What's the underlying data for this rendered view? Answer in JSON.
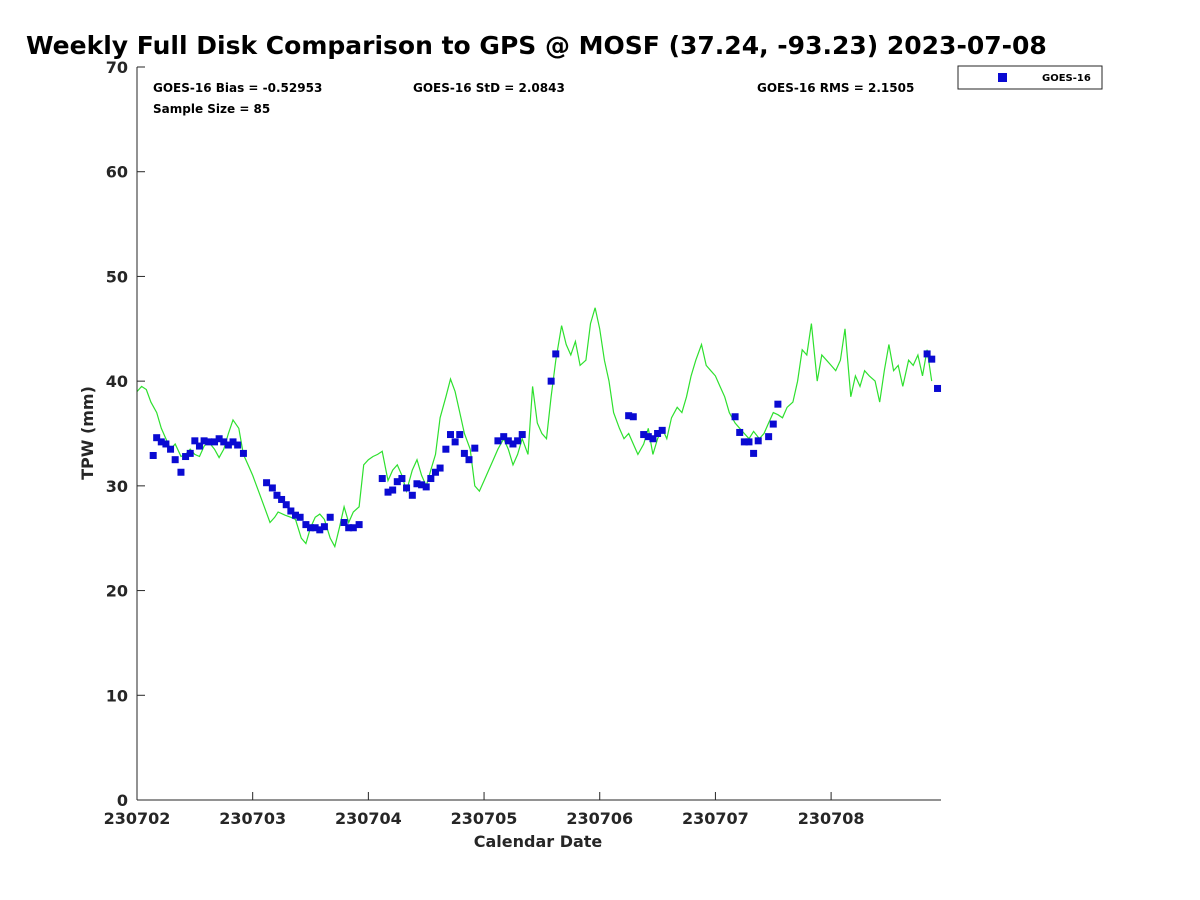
{
  "chart_data": {
    "type": "scatter",
    "title": "Weekly Full Disk Comparison to GPS @ MOSF (37.24, -93.23) 2023-07-08",
    "xlabel": "Calendar Date",
    "ylabel": "TPW (mm)",
    "xlim": [
      0,
      6.95
    ],
    "ylim": [
      0,
      70
    ],
    "yticks": [
      0,
      10,
      20,
      30,
      40,
      50,
      60,
      70
    ],
    "xticks": [
      {
        "value": 0,
        "label": "230702"
      },
      {
        "value": 1,
        "label": "230703"
      },
      {
        "value": 2,
        "label": "230704"
      },
      {
        "value": 3,
        "label": "230705"
      },
      {
        "value": 4,
        "label": "230706"
      },
      {
        "value": 5,
        "label": "230707"
      },
      {
        "value": 6,
        "label": "230708"
      }
    ],
    "grid": false,
    "legend": {
      "position": "top-right",
      "entries": [
        "GOES-16"
      ]
    },
    "stats": {
      "bias": "GOES-16 Bias = -0.52953",
      "std": "GOES-16 StD = 2.0843",
      "rms": "GOES-16 RMS = 2.1505",
      "sample": "Sample Size = 85"
    },
    "colors": {
      "goes": "#0a0ad2",
      "gps": "#2ee02e",
      "axis": "#262626"
    },
    "series": [
      {
        "name": "GPS",
        "type": "line",
        "points": [
          [
            0.0,
            39.0
          ],
          [
            0.04,
            39.5
          ],
          [
            0.08,
            39.2
          ],
          [
            0.12,
            38.0
          ],
          [
            0.17,
            37.0
          ],
          [
            0.21,
            35.5
          ],
          [
            0.25,
            34.5
          ],
          [
            0.29,
            33.5
          ],
          [
            0.33,
            34.0
          ],
          [
            0.38,
            32.8
          ],
          [
            0.42,
            33.0
          ],
          [
            0.46,
            33.5
          ],
          [
            0.5,
            33.0
          ],
          [
            0.54,
            32.8
          ],
          [
            0.58,
            33.8
          ],
          [
            0.62,
            34.2
          ],
          [
            0.67,
            33.5
          ],
          [
            0.71,
            32.7
          ],
          [
            0.75,
            33.5
          ],
          [
            0.79,
            35.0
          ],
          [
            0.83,
            36.3
          ],
          [
            0.88,
            35.5
          ],
          [
            0.92,
            33.0
          ],
          [
            0.96,
            32.0
          ],
          [
            1.0,
            31.0
          ],
          [
            1.05,
            29.5
          ],
          [
            1.1,
            28.0
          ],
          [
            1.15,
            26.5
          ],
          [
            1.19,
            27.0
          ],
          [
            1.22,
            27.5
          ],
          [
            1.28,
            27.2
          ],
          [
            1.33,
            27.0
          ],
          [
            1.37,
            26.8
          ],
          [
            1.42,
            25.0
          ],
          [
            1.46,
            24.5
          ],
          [
            1.5,
            26.0
          ],
          [
            1.54,
            27.0
          ],
          [
            1.58,
            27.3
          ],
          [
            1.62,
            26.8
          ],
          [
            1.67,
            25.0
          ],
          [
            1.71,
            24.2
          ],
          [
            1.75,
            26.0
          ],
          [
            1.79,
            28.0
          ],
          [
            1.83,
            26.5
          ],
          [
            1.87,
            27.5
          ],
          [
            1.92,
            28.0
          ],
          [
            1.96,
            32.0
          ],
          [
            2.0,
            32.5
          ],
          [
            2.04,
            32.8
          ],
          [
            2.08,
            33.0
          ],
          [
            2.12,
            33.3
          ],
          [
            2.17,
            30.5
          ],
          [
            2.21,
            31.5
          ],
          [
            2.25,
            32.0
          ],
          [
            2.29,
            31.0
          ],
          [
            2.33,
            29.5
          ],
          [
            2.38,
            31.5
          ],
          [
            2.42,
            32.5
          ],
          [
            2.46,
            31.0
          ],
          [
            2.5,
            30.0
          ],
          [
            2.54,
            31.5
          ],
          [
            2.58,
            33.0
          ],
          [
            2.62,
            36.5
          ],
          [
            2.67,
            38.5
          ],
          [
            2.71,
            40.2
          ],
          [
            2.75,
            39.0
          ],
          [
            2.79,
            37.0
          ],
          [
            2.83,
            35.0
          ],
          [
            2.88,
            33.5
          ],
          [
            2.92,
            30.0
          ],
          [
            2.96,
            29.5
          ],
          [
            3.0,
            30.5
          ],
          [
            3.04,
            31.5
          ],
          [
            3.08,
            32.5
          ],
          [
            3.12,
            33.5
          ],
          [
            3.17,
            34.5
          ],
          [
            3.21,
            33.5
          ],
          [
            3.25,
            32.0
          ],
          [
            3.29,
            33.0
          ],
          [
            3.33,
            34.5
          ],
          [
            3.38,
            33.0
          ],
          [
            3.42,
            39.5
          ],
          [
            3.46,
            36.0
          ],
          [
            3.5,
            35.0
          ],
          [
            3.54,
            34.5
          ],
          [
            3.58,
            38.5
          ],
          [
            3.62,
            42.0
          ],
          [
            3.67,
            45.3
          ],
          [
            3.71,
            43.5
          ],
          [
            3.75,
            42.5
          ],
          [
            3.79,
            43.8
          ],
          [
            3.83,
            41.5
          ],
          [
            3.88,
            42.0
          ],
          [
            3.92,
            45.5
          ],
          [
            3.96,
            47.0
          ],
          [
            4.0,
            45.0
          ],
          [
            4.04,
            42.0
          ],
          [
            4.08,
            40.0
          ],
          [
            4.12,
            37.0
          ],
          [
            4.17,
            35.5
          ],
          [
            4.21,
            34.5
          ],
          [
            4.25,
            35.0
          ],
          [
            4.29,
            34.0
          ],
          [
            4.33,
            33.0
          ],
          [
            4.38,
            34.0
          ],
          [
            4.42,
            35.5
          ],
          [
            4.46,
            33.0
          ],
          [
            4.5,
            34.5
          ],
          [
            4.54,
            35.5
          ],
          [
            4.58,
            34.5
          ],
          [
            4.62,
            36.5
          ],
          [
            4.67,
            37.5
          ],
          [
            4.71,
            37.0
          ],
          [
            4.75,
            38.5
          ],
          [
            4.79,
            40.5
          ],
          [
            4.83,
            42.0
          ],
          [
            4.88,
            43.5
          ],
          [
            4.92,
            41.5
          ],
          [
            4.96,
            41.0
          ],
          [
            5.0,
            40.5
          ],
          [
            5.04,
            39.5
          ],
          [
            5.08,
            38.5
          ],
          [
            5.12,
            37.0
          ],
          [
            5.17,
            36.0
          ],
          [
            5.21,
            35.5
          ],
          [
            5.25,
            35.0
          ],
          [
            5.29,
            34.5
          ],
          [
            5.33,
            35.2
          ],
          [
            5.38,
            34.5
          ],
          [
            5.42,
            35.0
          ],
          [
            5.46,
            36.0
          ],
          [
            5.5,
            37.0
          ],
          [
            5.54,
            36.8
          ],
          [
            5.58,
            36.5
          ],
          [
            5.62,
            37.5
          ],
          [
            5.67,
            38.0
          ],
          [
            5.71,
            40.0
          ],
          [
            5.75,
            43.0
          ],
          [
            5.79,
            42.5
          ],
          [
            5.83,
            45.5
          ],
          [
            5.88,
            40.0
          ],
          [
            5.92,
            42.5
          ],
          [
            5.96,
            42.0
          ],
          [
            6.0,
            41.5
          ],
          [
            6.04,
            41.0
          ],
          [
            6.08,
            42.0
          ],
          [
            6.12,
            45.0
          ],
          [
            6.17,
            38.5
          ],
          [
            6.21,
            40.5
          ],
          [
            6.25,
            39.5
          ],
          [
            6.29,
            41.0
          ],
          [
            6.33,
            40.5
          ],
          [
            6.38,
            40.0
          ],
          [
            6.42,
            38.0
          ],
          [
            6.46,
            41.0
          ],
          [
            6.5,
            43.5
          ],
          [
            6.54,
            41.0
          ],
          [
            6.58,
            41.5
          ],
          [
            6.62,
            39.5
          ],
          [
            6.67,
            42.0
          ],
          [
            6.71,
            41.5
          ],
          [
            6.75,
            42.5
          ],
          [
            6.79,
            40.5
          ],
          [
            6.83,
            43.0
          ],
          [
            6.87,
            40.0
          ]
        ]
      },
      {
        "name": "GOES-16",
        "type": "scatter",
        "points": [
          [
            0.14,
            32.9
          ],
          [
            0.17,
            34.6
          ],
          [
            0.21,
            34.2
          ],
          [
            0.25,
            34.0
          ],
          [
            0.29,
            33.5
          ],
          [
            0.33,
            32.5
          ],
          [
            0.38,
            31.3
          ],
          [
            0.42,
            32.8
          ],
          [
            0.46,
            33.1
          ],
          [
            0.5,
            34.3
          ],
          [
            0.54,
            33.8
          ],
          [
            0.58,
            34.3
          ],
          [
            0.62,
            34.2
          ],
          [
            0.67,
            34.2
          ],
          [
            0.71,
            34.5
          ],
          [
            0.75,
            34.2
          ],
          [
            0.79,
            33.9
          ],
          [
            0.83,
            34.2
          ],
          [
            0.87,
            33.9
          ],
          [
            0.92,
            33.1
          ],
          [
            1.12,
            30.3
          ],
          [
            1.17,
            29.8
          ],
          [
            1.21,
            29.1
          ],
          [
            1.25,
            28.7
          ],
          [
            1.29,
            28.2
          ],
          [
            1.33,
            27.6
          ],
          [
            1.37,
            27.2
          ],
          [
            1.41,
            27.0
          ],
          [
            1.46,
            26.3
          ],
          [
            1.5,
            26.0
          ],
          [
            1.54,
            26.0
          ],
          [
            1.58,
            25.8
          ],
          [
            1.62,
            26.1
          ],
          [
            1.67,
            27.0
          ],
          [
            1.79,
            26.5
          ],
          [
            1.83,
            26.0
          ],
          [
            1.87,
            26.0
          ],
          [
            1.92,
            26.3
          ],
          [
            2.12,
            30.7
          ],
          [
            2.17,
            29.4
          ],
          [
            2.21,
            29.6
          ],
          [
            2.25,
            30.4
          ],
          [
            2.29,
            30.7
          ],
          [
            2.33,
            29.8
          ],
          [
            2.38,
            29.1
          ],
          [
            2.42,
            30.2
          ],
          [
            2.46,
            30.1
          ],
          [
            2.5,
            29.9
          ],
          [
            2.54,
            30.7
          ],
          [
            2.58,
            31.3
          ],
          [
            2.62,
            31.7
          ],
          [
            2.67,
            33.5
          ],
          [
            2.71,
            34.9
          ],
          [
            2.75,
            34.2
          ],
          [
            2.79,
            34.9
          ],
          [
            2.83,
            33.1
          ],
          [
            2.87,
            32.5
          ],
          [
            2.92,
            33.6
          ],
          [
            3.12,
            34.3
          ],
          [
            3.17,
            34.7
          ],
          [
            3.21,
            34.3
          ],
          [
            3.25,
            34.0
          ],
          [
            3.29,
            34.3
          ],
          [
            3.33,
            34.9
          ],
          [
            3.58,
            40.0
          ],
          [
            3.62,
            42.6
          ],
          [
            4.25,
            36.7
          ],
          [
            4.29,
            36.6
          ],
          [
            4.38,
            34.9
          ],
          [
            4.42,
            34.7
          ],
          [
            4.46,
            34.5
          ],
          [
            4.5,
            35.0
          ],
          [
            4.54,
            35.3
          ],
          [
            5.17,
            36.6
          ],
          [
            5.21,
            35.1
          ],
          [
            5.25,
            34.2
          ],
          [
            5.29,
            34.2
          ],
          [
            5.33,
            33.1
          ],
          [
            5.37,
            34.3
          ],
          [
            5.46,
            34.7
          ],
          [
            5.5,
            35.9
          ],
          [
            5.54,
            37.8
          ],
          [
            6.83,
            42.6
          ],
          [
            6.87,
            42.1
          ],
          [
            6.92,
            39.3
          ]
        ]
      }
    ]
  }
}
